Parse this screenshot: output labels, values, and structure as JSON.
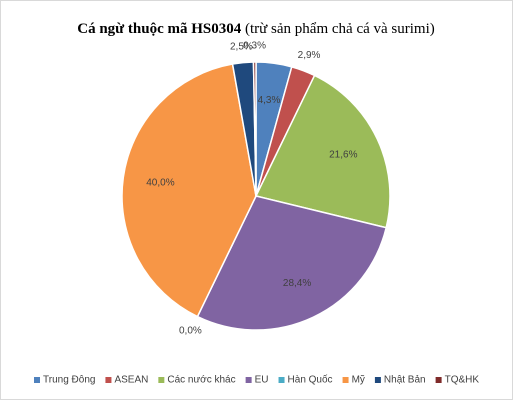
{
  "chart_data": {
    "type": "pie",
    "title": "Cá ngừ thuộc mã HS0304",
    "subtitle": "(trừ sản phẩm  chả cá và  surimi)",
    "categories": [
      "Trung Đông",
      "ASEAN",
      "Các nước khác",
      "EU",
      "Hàn Quốc",
      "Mỹ",
      "Nhật Bản",
      "TQ&HK"
    ],
    "values": [
      4.3,
      2.9,
      21.6,
      28.4,
      0.0,
      40.0,
      2.5,
      0.3
    ],
    "value_labels": [
      "4,3%",
      "2,9%",
      "21,6%",
      "28,4%",
      "0,0%",
      "40,0%",
      "2,5%",
      "0,3%"
    ],
    "colors": [
      "#4f81bd",
      "#c0504d",
      "#9bbb59",
      "#8064a2",
      "#4bacc6",
      "#f79646",
      "#1f497d",
      "#7f2b2a"
    ],
    "legend": "bottom"
  }
}
